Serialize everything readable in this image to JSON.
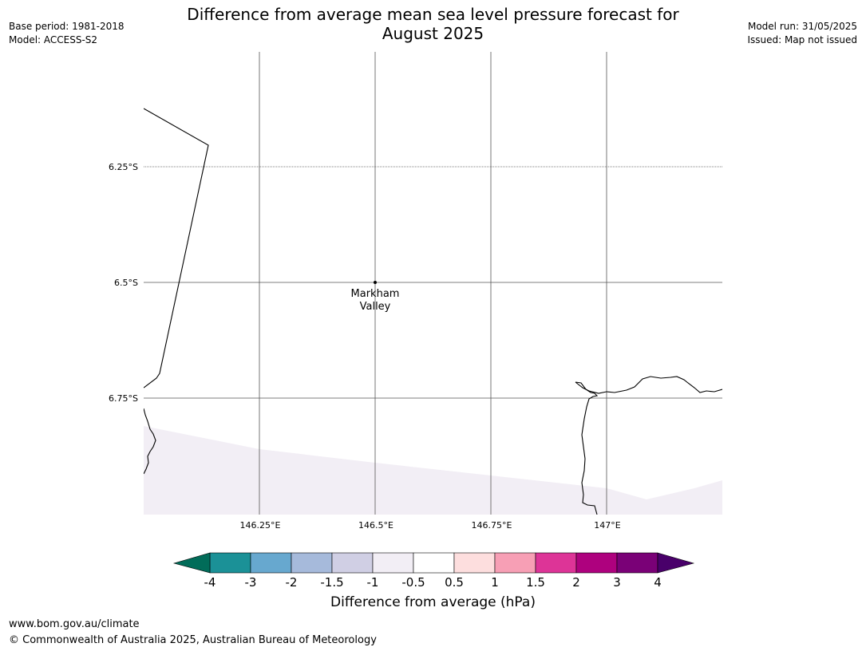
{
  "title": {
    "line1": "Difference from average mean sea level pressure forecast for",
    "line2": "August 2025"
  },
  "meta_left": {
    "base_period": "Base period: 1981-2018",
    "model": "Model: ACCESS-S2"
  },
  "meta_right": {
    "model_run": "Model run: 31/05/2025",
    "issued": "Issued: Map not issued"
  },
  "map": {
    "lat_labels": [
      "6.25°S",
      "6.5°S",
      "6.75°S"
    ],
    "lon_labels": [
      "146.25°E",
      "146.5°E",
      "146.75°E",
      "147°E"
    ],
    "place": {
      "name_line1": "Markham",
      "name_line2": "Valley",
      "lat": -6.5,
      "lon": 146.5
    },
    "fill_color": "#f2eef5",
    "coast_color": "#000000",
    "grid_color": "#555555"
  },
  "colorbar": {
    "tick_labels": [
      "-4",
      "-3",
      "-2",
      "-1.5",
      "-1",
      "-0.5",
      "0.5",
      "1",
      "1.5",
      "2",
      "3",
      "4"
    ],
    "colors": [
      "#1b9197",
      "#67a8cf",
      "#a6badb",
      "#d0cfe4",
      "#f2eef5",
      "#ffffff",
      "#fddede",
      "#f79fb5",
      "#dd3497",
      "#ae017e",
      "#7a0177"
    ],
    "low_extend_color": "#016c59",
    "high_extend_color": "#49006a",
    "label": "Difference from average (hPa)"
  },
  "footer": {
    "url": "www.bom.gov.au/climate",
    "copyright": "© Commonwealth of Australia 2025, Australian Bureau of Meteorology"
  }
}
